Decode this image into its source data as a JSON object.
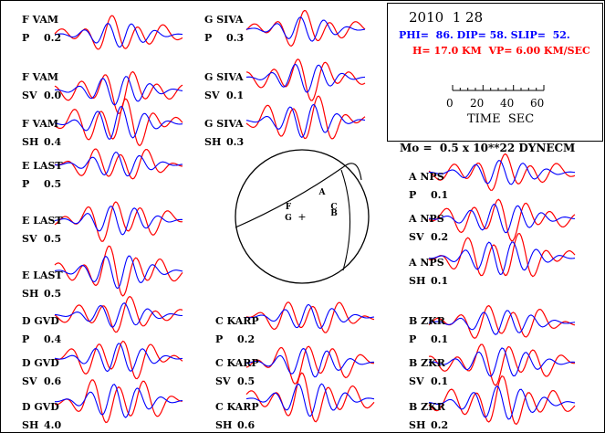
{
  "header": {
    "date": "2010  1 28",
    "mechanism": "PHI=  86. DIP= 58. SLIP=  52.",
    "depth_velocity": "H= 17.0 KM  VP= 6.00 KM/SEC",
    "moment": "Mo =  0.5 x 10**22 DYNECM"
  },
  "time_scale": {
    "ticks": [
      "0",
      "20",
      "40",
      "60"
    ],
    "label": "TIME  SEC"
  },
  "colors": {
    "observed": "#ff0000",
    "synthetic": "#0000ff",
    "text_blue": "#0000ff",
    "text_red": "#ff0000"
  },
  "traces": [
    {
      "station": "F VAM",
      "comp": "P",
      "weight": "0.2"
    },
    {
      "station": "F VAM",
      "comp": "SV",
      "weight": "0.0"
    },
    {
      "station": "F VAM",
      "comp": "SH",
      "weight": "0.4"
    },
    {
      "station": "E LAST",
      "comp": "P",
      "weight": "0.5"
    },
    {
      "station": "E LAST",
      "comp": "SV",
      "weight": "0.5"
    },
    {
      "station": "E LAST",
      "comp": "SH",
      "weight": "0.5"
    },
    {
      "station": "D GVD",
      "comp": "P",
      "weight": "0.4"
    },
    {
      "station": "D GVD",
      "comp": "SV",
      "weight": "0.6"
    },
    {
      "station": "D GVD",
      "comp": "SH",
      "weight": "4.0"
    },
    {
      "station": "G SIVA",
      "comp": "P",
      "weight": "0.3"
    },
    {
      "station": "G SIVA",
      "comp": "SV",
      "weight": "0.1"
    },
    {
      "station": "G SIVA",
      "comp": "SH",
      "weight": "0.3"
    },
    {
      "station": "C KARP",
      "comp": "P",
      "weight": "0.2"
    },
    {
      "station": "C KARP",
      "comp": "SV",
      "weight": "0.5"
    },
    {
      "station": "C KARP",
      "comp": "SH",
      "weight": "0.6"
    },
    {
      "station": "A NPS",
      "comp": "P",
      "weight": "0.1"
    },
    {
      "station": "A NPS",
      "comp": "SV",
      "weight": "0.2"
    },
    {
      "station": "A NPS",
      "comp": "SH",
      "weight": "0.1"
    },
    {
      "station": "B ZKR",
      "comp": "P",
      "weight": "0.1"
    },
    {
      "station": "B ZKR",
      "comp": "SV",
      "weight": "0.1"
    },
    {
      "station": "B ZKR",
      "comp": "SH",
      "weight": "0.2"
    }
  ],
  "stereonet": {
    "station_letters": [
      "F",
      "G",
      "A",
      "C",
      "B"
    ],
    "center_marker": "+"
  }
}
